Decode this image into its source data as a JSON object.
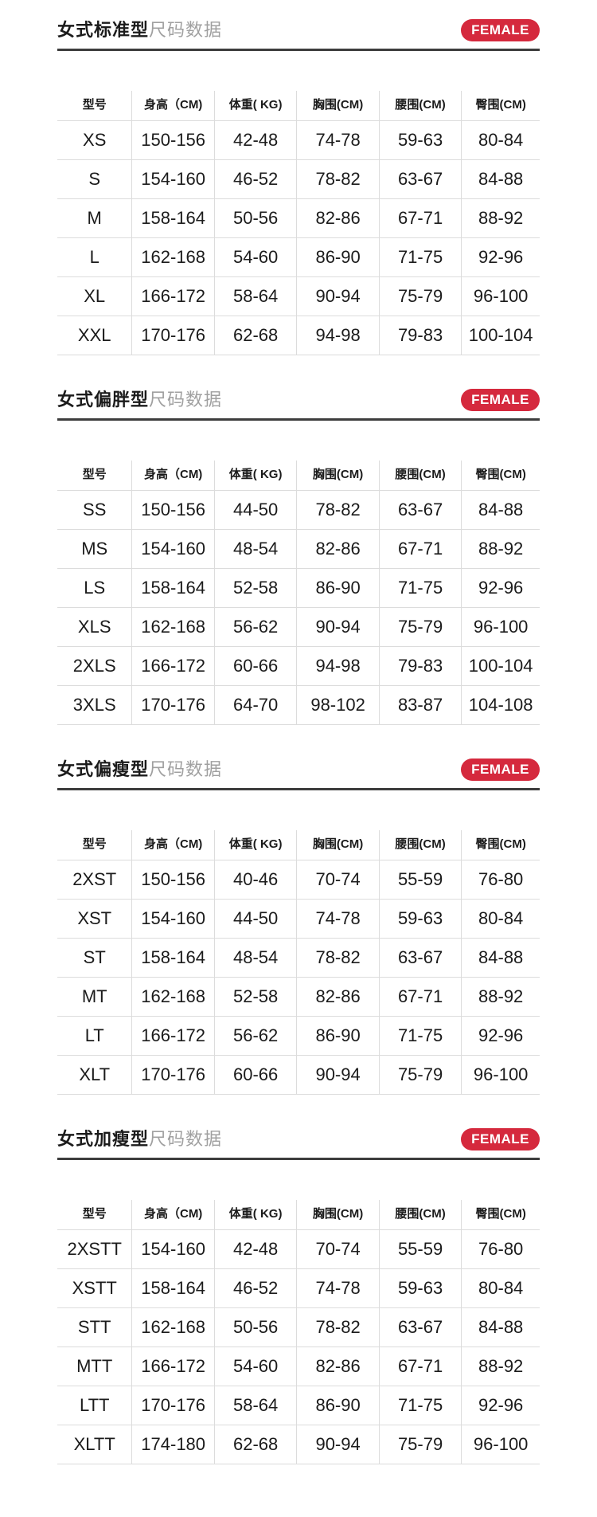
{
  "accent_color": "#d5293d",
  "underline_color": "#3d3d3d",
  "table_border_color": "#dcdcdc",
  "badge_label": "FEMALE",
  "columns": [
    "型号",
    "身高（CM)",
    "体重( KG)",
    "胸围(CM)",
    "腰围(CM)",
    "臀围(CM)"
  ],
  "sections": [
    {
      "title_bold": "女式标准型",
      "title_light": "尺码数据",
      "badge": "FEMALE",
      "rows": [
        [
          "XS",
          "150-156",
          "42-48",
          "74-78",
          "59-63",
          "80-84"
        ],
        [
          "S",
          "154-160",
          "46-52",
          "78-82",
          "63-67",
          "84-88"
        ],
        [
          "M",
          "158-164",
          "50-56",
          "82-86",
          "67-71",
          "88-92"
        ],
        [
          "L",
          "162-168",
          "54-60",
          "86-90",
          "71-75",
          "92-96"
        ],
        [
          "XL",
          "166-172",
          "58-64",
          "90-94",
          "75-79",
          "96-100"
        ],
        [
          "XXL",
          "170-176",
          "62-68",
          "94-98",
          "79-83",
          "100-104"
        ]
      ]
    },
    {
      "title_bold": "女式偏胖型",
      "title_light": "尺码数据",
      "badge": "FEMALE",
      "rows": [
        [
          "SS",
          "150-156",
          "44-50",
          "78-82",
          "63-67",
          "84-88"
        ],
        [
          "MS",
          "154-160",
          "48-54",
          "82-86",
          "67-71",
          "88-92"
        ],
        [
          "LS",
          "158-164",
          "52-58",
          "86-90",
          "71-75",
          "92-96"
        ],
        [
          "XLS",
          "162-168",
          "56-62",
          "90-94",
          "75-79",
          "96-100"
        ],
        [
          "2XLS",
          "166-172",
          "60-66",
          "94-98",
          "79-83",
          "100-104"
        ],
        [
          "3XLS",
          "170-176",
          "64-70",
          "98-102",
          "83-87",
          "104-108"
        ]
      ]
    },
    {
      "title_bold": "女式偏瘦型",
      "title_light": "尺码数据",
      "badge": "FEMALE",
      "rows": [
        [
          "2XST",
          "150-156",
          "40-46",
          "70-74",
          "55-59",
          "76-80"
        ],
        [
          "XST",
          "154-160",
          "44-50",
          "74-78",
          "59-63",
          "80-84"
        ],
        [
          "ST",
          "158-164",
          "48-54",
          "78-82",
          "63-67",
          "84-88"
        ],
        [
          "MT",
          "162-168",
          "52-58",
          "82-86",
          "67-71",
          "88-92"
        ],
        [
          "LT",
          "166-172",
          "56-62",
          "86-90",
          "71-75",
          "92-96"
        ],
        [
          "XLT",
          "170-176",
          "60-66",
          "90-94",
          "75-79",
          "96-100"
        ]
      ]
    },
    {
      "title_bold": "女式加瘦型",
      "title_light": "尺码数据",
      "badge": "FEMALE",
      "rows": [
        [
          "2XSTT",
          "154-160",
          "42-48",
          "70-74",
          "55-59",
          "76-80"
        ],
        [
          "XSTT",
          "158-164",
          "46-52",
          "74-78",
          "59-63",
          "80-84"
        ],
        [
          "STT",
          "162-168",
          "50-56",
          "78-82",
          "63-67",
          "84-88"
        ],
        [
          "MTT",
          "166-172",
          "54-60",
          "82-86",
          "67-71",
          "88-92"
        ],
        [
          "LTT",
          "170-176",
          "58-64",
          "86-90",
          "71-75",
          "92-96"
        ],
        [
          "XLTT",
          "174-180",
          "62-68",
          "90-94",
          "75-79",
          "96-100"
        ]
      ]
    }
  ]
}
